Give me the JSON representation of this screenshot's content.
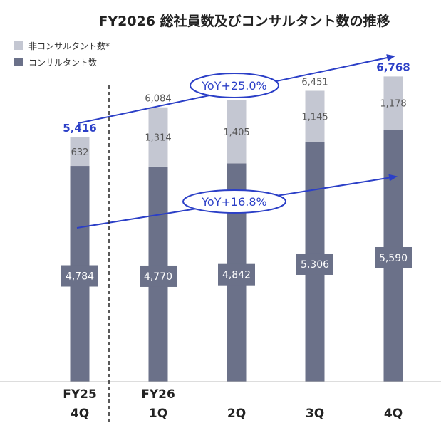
{
  "chart_data": {
    "type": "bar",
    "stacked": true,
    "title": "FY2026 総社員数及びコンサルタント数の推移",
    "categories": [
      [
        "FY25",
        "4Q"
      ],
      [
        "FY26",
        "1Q"
      ],
      [
        "",
        "2Q"
      ],
      [
        "",
        "3Q"
      ],
      [
        "",
        "4Q"
      ]
    ],
    "series": [
      {
        "name": "コンサルタント数",
        "values": [
          4784,
          4770,
          4842,
          5306,
          5590
        ],
        "labels": [
          "4,784",
          "4,770",
          "4,842",
          "5,306",
          "5,590"
        ],
        "color": "#6b7189"
      },
      {
        "name": "非コンサルタント数*",
        "values": [
          632,
          1314,
          1405,
          1145,
          1178
        ],
        "labels": [
          "632",
          "1,314",
          "1,405",
          "1,145",
          "1,178"
        ],
        "color": "#c4c7d2"
      }
    ],
    "totals": {
      "values": [
        5416,
        6084,
        6247,
        6451,
        6768
      ],
      "labels": [
        "5,416",
        "6,084",
        "6,247",
        "6,451",
        "6,768"
      ],
      "highlight": [
        true,
        false,
        false,
        false,
        true
      ],
      "highlight_color": "#2b3fc7"
    },
    "annotations": [
      {
        "text": "YoY+25.0%",
        "from": 0,
        "to": 4,
        "series": "total"
      },
      {
        "text": "YoY+16.8%",
        "from": 0,
        "to": 4,
        "series": "コンサルタント数"
      }
    ],
    "divider_after_index": 0,
    "ylim": [
      0,
      7200
    ],
    "grid": false,
    "legend_position": "top-left",
    "accent_color": "#2b3fc7"
  }
}
